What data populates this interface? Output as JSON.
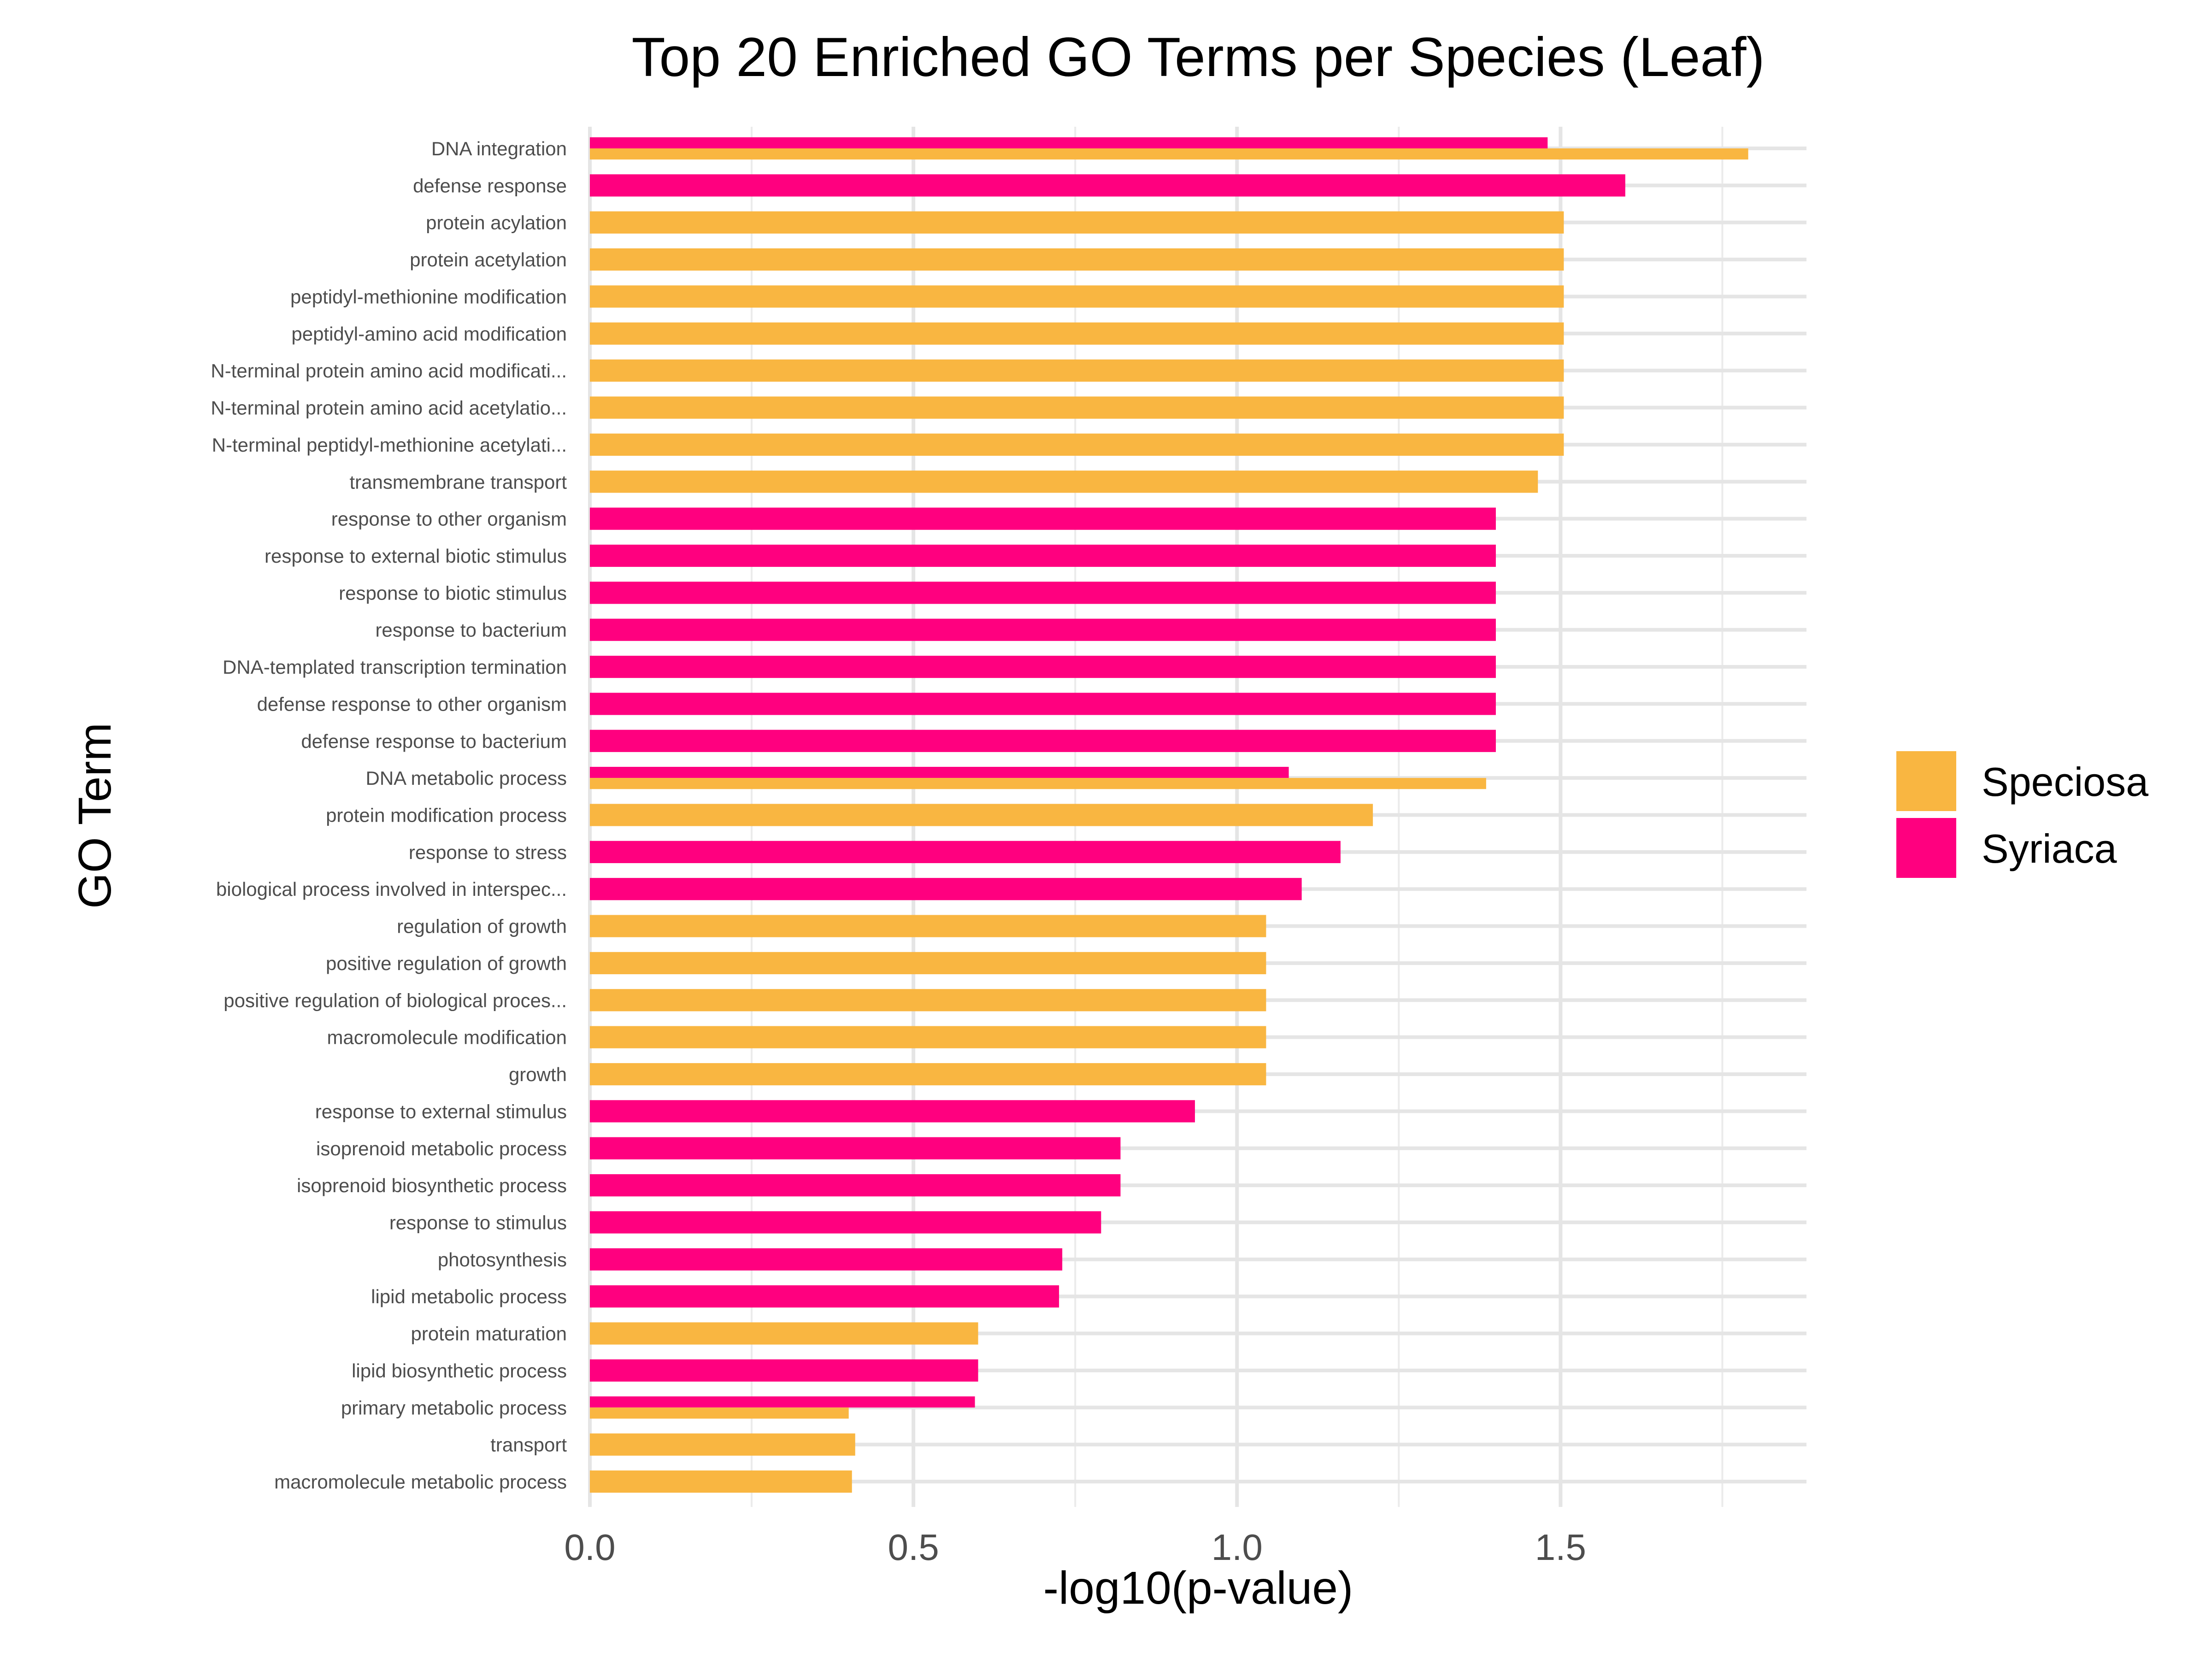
{
  "chart_data": {
    "type": "bar",
    "orientation": "horizontal",
    "title": "Top 20 Enriched GO Terms per Species (Leaf)",
    "xlabel": "-log10(p-value)",
    "ylabel": "GO Term",
    "xlim": [
      0,
      1.88
    ],
    "xticks": [
      "0.0",
      "0.5",
      "1.0",
      "1.5"
    ],
    "grid": true,
    "legend_position": "right",
    "categories": [
      "DNA integration",
      "defense response",
      "protein acylation",
      "protein acetylation",
      "peptidyl-methionine modification",
      "peptidyl-amino acid modification",
      "N-terminal protein amino acid modificati...",
      "N-terminal protein amino acid acetylatio...",
      "N-terminal peptidyl-methionine acetylati...",
      "transmembrane transport",
      "response to other organism",
      "response to external biotic stimulus",
      "response to biotic stimulus",
      "response to bacterium",
      "DNA-templated transcription termination",
      "defense response to other organism",
      "defense response to bacterium",
      "DNA metabolic process",
      "protein modification process",
      "response to stress",
      "biological process involved in interspec...",
      "regulation of growth",
      "positive regulation of growth",
      "positive regulation of biological proces...",
      "macromolecule modification",
      "growth",
      "response to external stimulus",
      "isoprenoid metabolic process",
      "isoprenoid biosynthetic process",
      "response to stimulus",
      "photosynthesis",
      "lipid metabolic process",
      "protein maturation",
      "lipid biosynthetic process",
      "primary metabolic process",
      "transport",
      "macromolecule metabolic process"
    ],
    "series": [
      {
        "name": "Speciosa",
        "color": "#F9B641",
        "values": [
          1.79,
          null,
          1.505,
          1.505,
          1.505,
          1.505,
          1.505,
          1.505,
          1.505,
          1.465,
          null,
          null,
          null,
          null,
          null,
          null,
          null,
          1.385,
          1.21,
          null,
          null,
          1.045,
          1.045,
          1.045,
          1.045,
          1.045,
          null,
          null,
          null,
          null,
          null,
          null,
          0.6,
          null,
          0.4,
          0.41,
          0.405
        ]
      },
      {
        "name": "Syriaca",
        "color": "#FF007F",
        "values": [
          1.48,
          1.6,
          null,
          null,
          null,
          null,
          null,
          null,
          null,
          null,
          1.4,
          1.4,
          1.4,
          1.4,
          1.4,
          1.4,
          1.4,
          1.08,
          null,
          1.16,
          1.1,
          null,
          null,
          null,
          null,
          null,
          0.935,
          0.82,
          0.82,
          0.79,
          0.73,
          0.725,
          null,
          0.6,
          0.595,
          null,
          null
        ]
      }
    ]
  }
}
